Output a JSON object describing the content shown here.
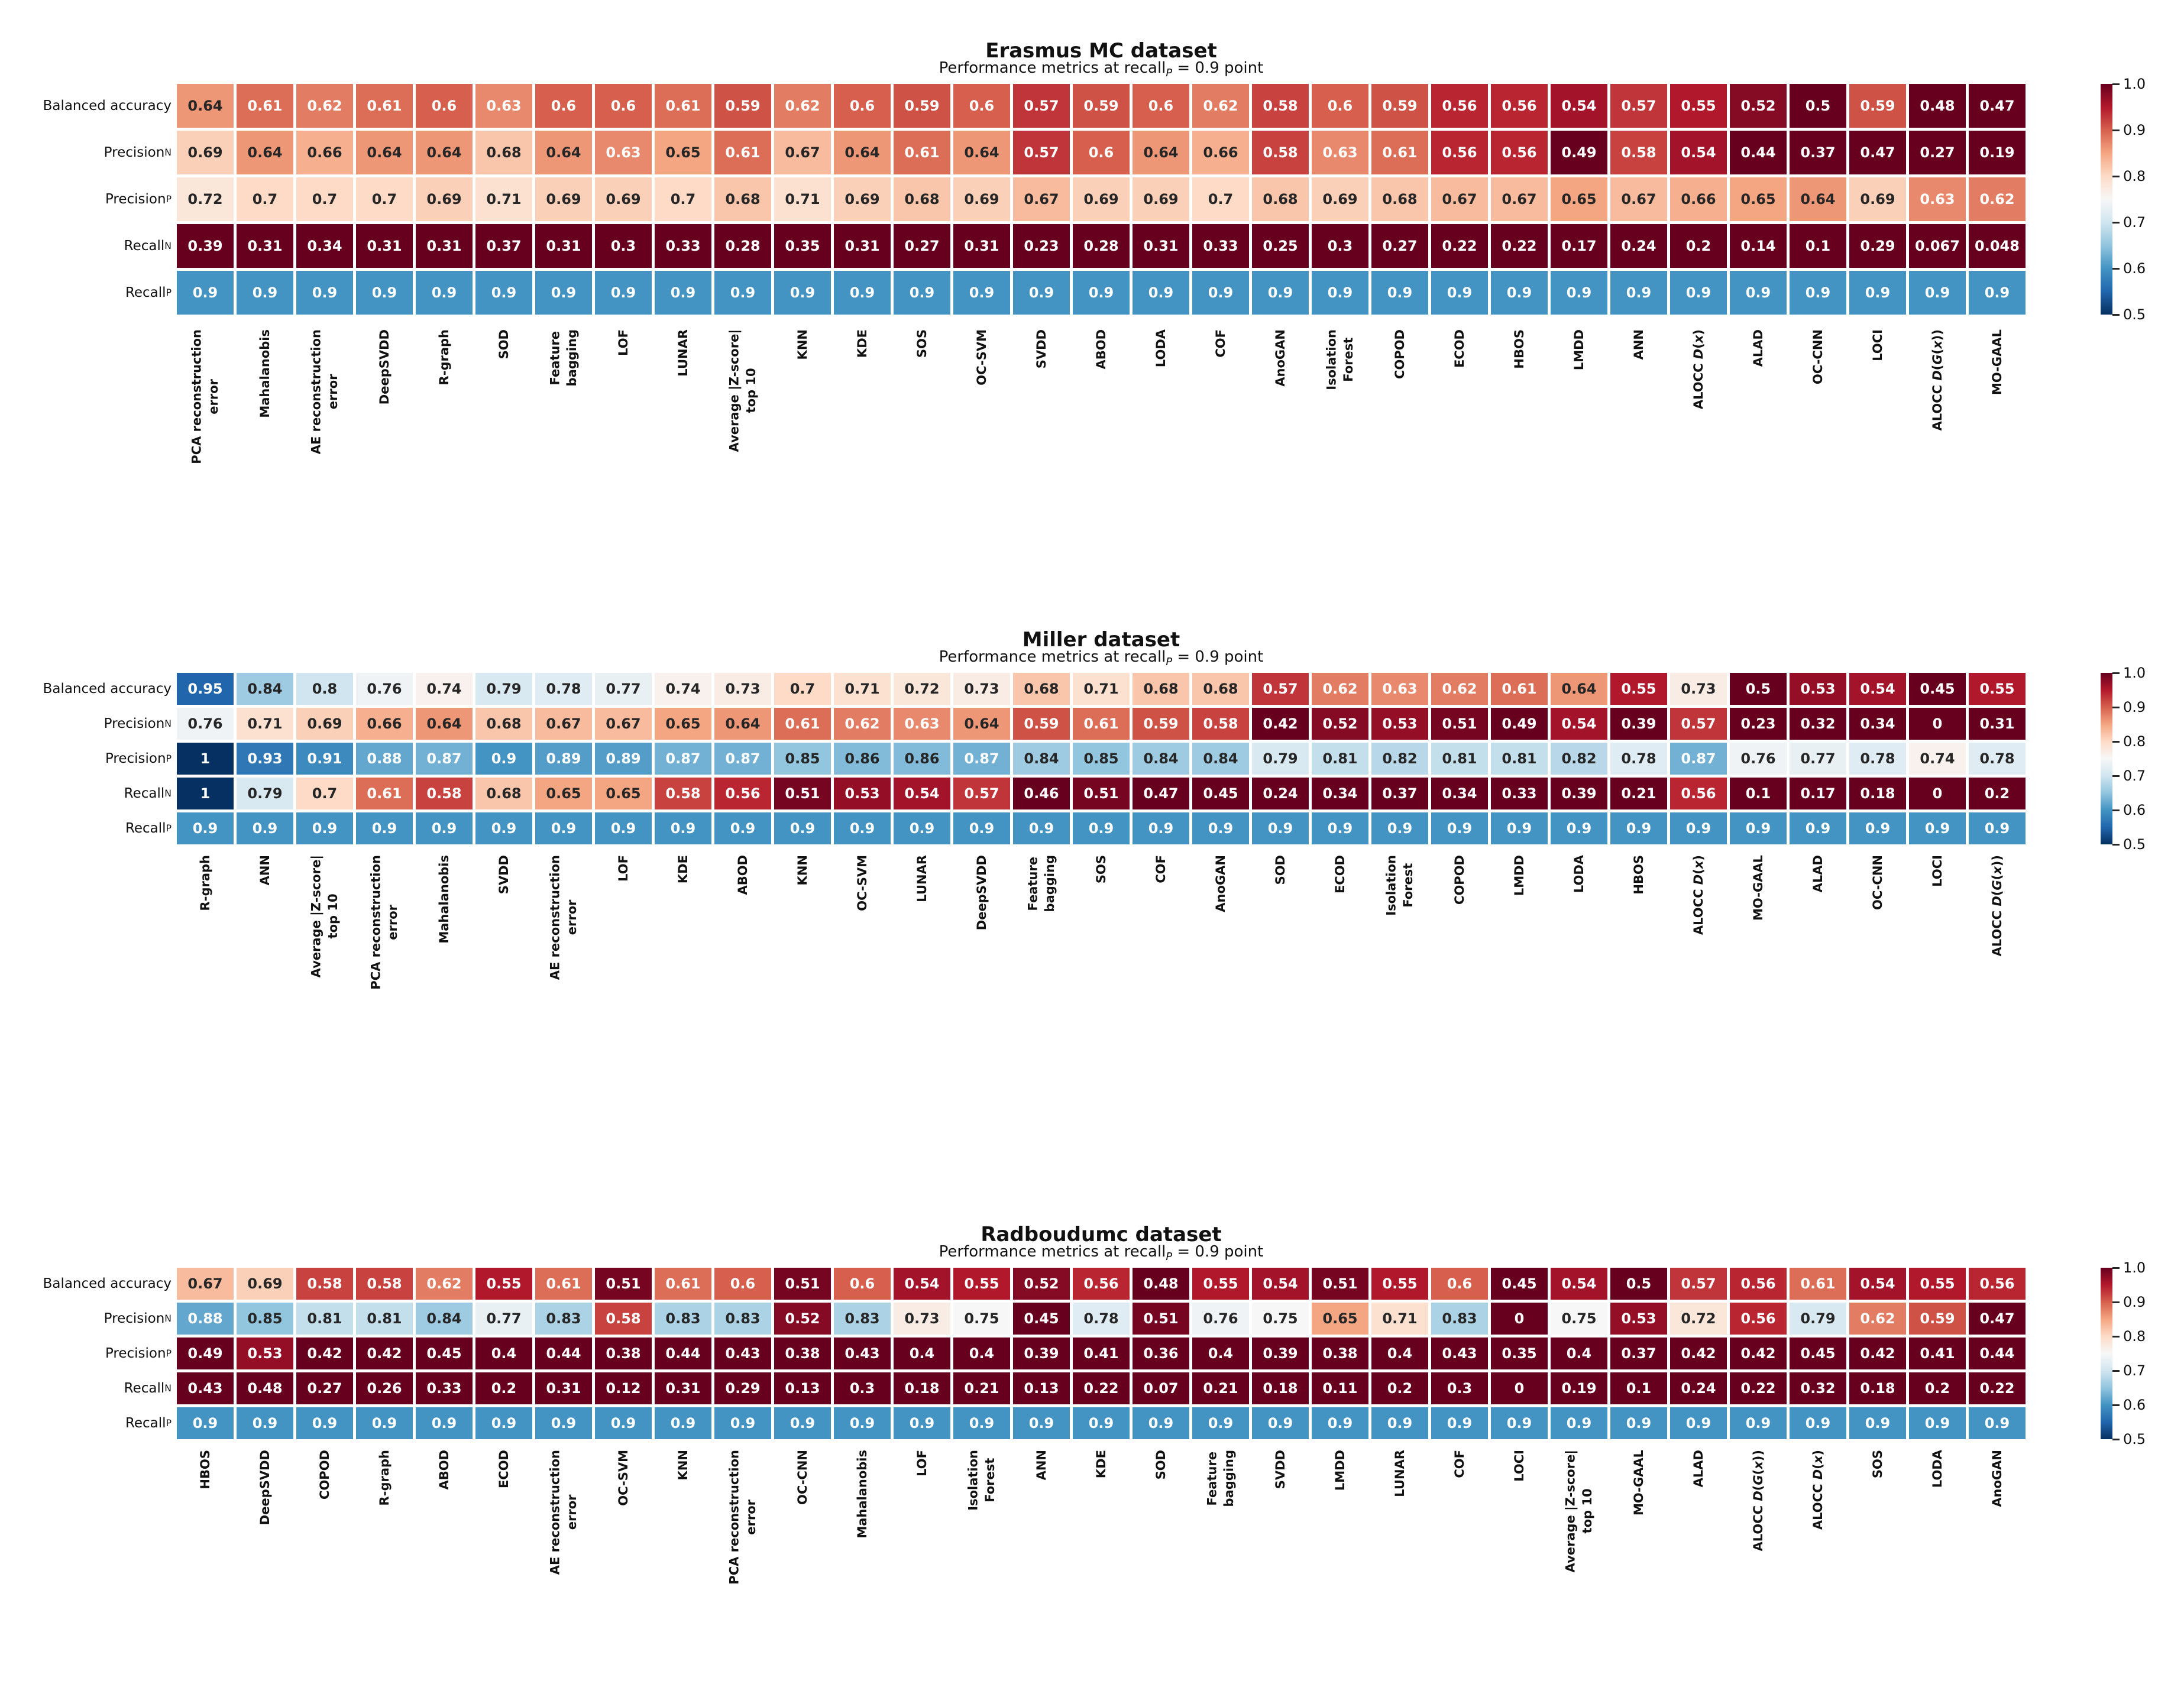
{
  "colorbar": {
    "ticks": [
      "1.0",
      "0.9",
      "0.8",
      "0.7",
      "0.6",
      "0.5"
    ],
    "colormap_stops": [
      "#67001f",
      "#b2182b",
      "#d6604d",
      "#f4a582",
      "#fddbc7",
      "#f7f7f7",
      "#d1e5f0",
      "#92c5de",
      "#4393c3",
      "#2166ac",
      "#053061"
    ]
  },
  "chart_data": [
    {
      "type": "heatmap",
      "title": "Erasmus MC dataset",
      "subtitle": "Performance metrics at recall*_{P}* = 0.9 point",
      "vmin": 0.5,
      "vmax": 1.0,
      "colormap": "RdBu_r",
      "legend_position": "right",
      "rows": [
        "Balanced accuracy",
        "Precision_{N}",
        "Precision_{P}",
        "Recall_{N}",
        "Recall_{P}"
      ],
      "columns": [
        "PCA reconstruction\nerror",
        "Mahalanobis",
        "AE reconstruction\nerror",
        "DeepSVDD",
        "R-graph",
        "SOD",
        "Feature\nbagging",
        "LOF",
        "LUNAR",
        "Average |Z-score|\ntop 10",
        "KNN",
        "KDE",
        "SOS",
        "OC-SVM",
        "SVDD",
        "ABOD",
        "LODA",
        "COF",
        "AnoGAN",
        "Isolation\nForest",
        "COPOD",
        "ECOD",
        "HBOS",
        "LMDD",
        "ANN",
        "ALOCC *D*(*x*)",
        "ALAD",
        "OC-CNN",
        "LOCI",
        "ALOCC *D*(*G*(*x*))",
        "MO-GAAL"
      ],
      "values": [
        [
          "0.64",
          "0.61",
          "0.62",
          "0.61",
          "0.6",
          "0.63",
          "0.6",
          "0.6",
          "0.61",
          "0.59",
          "0.62",
          "0.6",
          "0.59",
          "0.6",
          "0.57",
          "0.59",
          "0.6",
          "0.62",
          "0.58",
          "0.6",
          "0.59",
          "0.56",
          "0.56",
          "0.54",
          "0.57",
          "0.55",
          "0.52",
          "0.5",
          "0.59",
          "0.48",
          "0.47"
        ],
        [
          "0.69",
          "0.64",
          "0.66",
          "0.64",
          "0.64",
          "0.68",
          "0.64",
          "0.63",
          "0.65",
          "0.61",
          "0.67",
          "0.64",
          "0.61",
          "0.64",
          "0.57",
          "0.6",
          "0.64",
          "0.66",
          "0.58",
          "0.63",
          "0.61",
          "0.56",
          "0.56",
          "0.49",
          "0.58",
          "0.54",
          "0.44",
          "0.37",
          "0.47",
          "0.27",
          "0.19"
        ],
        [
          "0.72",
          "0.7",
          "0.7",
          "0.7",
          "0.69",
          "0.71",
          "0.69",
          "0.69",
          "0.7",
          "0.68",
          "0.71",
          "0.69",
          "0.68",
          "0.69",
          "0.67",
          "0.69",
          "0.69",
          "0.7",
          "0.68",
          "0.69",
          "0.68",
          "0.67",
          "0.67",
          "0.65",
          "0.67",
          "0.66",
          "0.65",
          "0.64",
          "0.69",
          "0.63",
          "0.62"
        ],
        [
          "0.39",
          "0.31",
          "0.34",
          "0.31",
          "0.31",
          "0.37",
          "0.31",
          "0.3",
          "0.33",
          "0.28",
          "0.35",
          "0.31",
          "0.27",
          "0.31",
          "0.23",
          "0.28",
          "0.31",
          "0.33",
          "0.25",
          "0.3",
          "0.27",
          "0.22",
          "0.22",
          "0.17",
          "0.24",
          "0.2",
          "0.14",
          "0.1",
          "0.29",
          "0.067",
          "0.048"
        ],
        [
          "0.9",
          "0.9",
          "0.9",
          "0.9",
          "0.9",
          "0.9",
          "0.9",
          "0.9",
          "0.9",
          "0.9",
          "0.9",
          "0.9",
          "0.9",
          "0.9",
          "0.9",
          "0.9",
          "0.9",
          "0.9",
          "0.9",
          "0.9",
          "0.9",
          "0.9",
          "0.9",
          "0.9",
          "0.9",
          "0.9",
          "0.9",
          "0.9",
          "0.9",
          "0.9",
          "0.9"
        ]
      ]
    },
    {
      "type": "heatmap",
      "title": "Miller dataset",
      "subtitle": "Performance metrics at recall*_{P}* = 0.9 point",
      "vmin": 0.5,
      "vmax": 1.0,
      "colormap": "RdBu_r",
      "legend_position": "right",
      "rows": [
        "Balanced accuracy",
        "Precision_{N}",
        "Precision_{P}",
        "Recall_{N}",
        "Recall_{P}"
      ],
      "columns": [
        "R-graph",
        "ANN",
        "Average |Z-score|\ntop 10",
        "PCA reconstruction\nerror",
        "Mahalanobis",
        "SVDD",
        "AE reconstruction\nerror",
        "LOF",
        "KDE",
        "ABOD",
        "KNN",
        "OC-SVM",
        "LUNAR",
        "DeepSVDD",
        "Feature\nbagging",
        "SOS",
        "COF",
        "AnoGAN",
        "SOD",
        "ECOD",
        "Isolation\nForest",
        "COPOD",
        "LMDD",
        "LODA",
        "HBOS",
        "ALOCC *D*(*x*)",
        "MO-GAAL",
        "ALAD",
        "OC-CNN",
        "LOCI",
        "ALOCC *D*(*G*(*x*))"
      ],
      "values": [
        [
          "0.95",
          "0.84",
          "0.8",
          "0.76",
          "0.74",
          "0.79",
          "0.78",
          "0.77",
          "0.74",
          "0.73",
          "0.7",
          "0.71",
          "0.72",
          "0.73",
          "0.68",
          "0.71",
          "0.68",
          "0.68",
          "0.57",
          "0.62",
          "0.63",
          "0.62",
          "0.61",
          "0.64",
          "0.55",
          "0.73",
          "0.5",
          "0.53",
          "0.54",
          "0.45",
          "0.55"
        ],
        [
          "0.76",
          "0.71",
          "0.69",
          "0.66",
          "0.64",
          "0.68",
          "0.67",
          "0.67",
          "0.65",
          "0.64",
          "0.61",
          "0.62",
          "0.63",
          "0.64",
          "0.59",
          "0.61",
          "0.59",
          "0.58",
          "0.42",
          "0.52",
          "0.53",
          "0.51",
          "0.49",
          "0.54",
          "0.39",
          "0.57",
          "0.23",
          "0.32",
          "0.34",
          "0",
          "0.31"
        ],
        [
          "1",
          "0.93",
          "0.91",
          "0.88",
          "0.87",
          "0.9",
          "0.89",
          "0.89",
          "0.87",
          "0.87",
          "0.85",
          "0.86",
          "0.86",
          "0.87",
          "0.84",
          "0.85",
          "0.84",
          "0.84",
          "0.79",
          "0.81",
          "0.82",
          "0.81",
          "0.81",
          "0.82",
          "0.78",
          "0.87",
          "0.76",
          "0.77",
          "0.78",
          "0.74",
          "0.78"
        ],
        [
          "1",
          "0.79",
          "0.7",
          "0.61",
          "0.58",
          "0.68",
          "0.65",
          "0.65",
          "0.58",
          "0.56",
          "0.51",
          "0.53",
          "0.54",
          "0.57",
          "0.46",
          "0.51",
          "0.47",
          "0.45",
          "0.24",
          "0.34",
          "0.37",
          "0.34",
          "0.33",
          "0.39",
          "0.21",
          "0.56",
          "0.1",
          "0.17",
          "0.18",
          "0",
          "0.2"
        ],
        [
          "0.9",
          "0.9",
          "0.9",
          "0.9",
          "0.9",
          "0.9",
          "0.9",
          "0.9",
          "0.9",
          "0.9",
          "0.9",
          "0.9",
          "0.9",
          "0.9",
          "0.9",
          "0.9",
          "0.9",
          "0.9",
          "0.9",
          "0.9",
          "0.9",
          "0.9",
          "0.9",
          "0.9",
          "0.9",
          "0.9",
          "0.9",
          "0.9",
          "0.9",
          "0.9",
          "0.9"
        ]
      ]
    },
    {
      "type": "heatmap",
      "title": "Radboudumc dataset",
      "subtitle": "Performance metrics at recall*_{P}* = 0.9 point",
      "vmin": 0.5,
      "vmax": 1.0,
      "colormap": "RdBu_r",
      "legend_position": "right",
      "rows": [
        "Balanced accuracy",
        "Precision_{N}",
        "Precision_{P}",
        "Recall_{N}",
        "Recall_{P}"
      ],
      "columns": [
        "HBOS",
        "DeepSVDD",
        "COPOD",
        "R-graph",
        "ABOD",
        "ECOD",
        "AE reconstruction\nerror",
        "OC-SVM",
        "KNN",
        "PCA reconstruction\nerror",
        "OC-CNN",
        "Mahalanobis",
        "LOF",
        "Isolation\nForest",
        "ANN",
        "KDE",
        "SOD",
        "Feature\nbagging",
        "SVDD",
        "LMDD",
        "LUNAR",
        "COF",
        "LOCI",
        "Average |Z-score|\ntop 10",
        "MO-GAAL",
        "ALAD",
        "ALOCC *D*(*G*(*x*))",
        "ALOCC *D*(*x*)",
        "SOS",
        "LODA",
        "AnoGAN"
      ],
      "values": [
        [
          "0.67",
          "0.69",
          "0.58",
          "0.58",
          "0.62",
          "0.55",
          "0.61",
          "0.51",
          "0.61",
          "0.6",
          "0.51",
          "0.6",
          "0.54",
          "0.55",
          "0.52",
          "0.56",
          "0.48",
          "0.55",
          "0.54",
          "0.51",
          "0.55",
          "0.6",
          "0.45",
          "0.54",
          "0.5",
          "0.57",
          "0.56",
          "0.61",
          "0.54",
          "0.55",
          "0.56"
        ],
        [
          "0.88",
          "0.85",
          "0.81",
          "0.81",
          "0.84",
          "0.77",
          "0.83",
          "0.58",
          "0.83",
          "0.83",
          "0.52",
          "0.83",
          "0.73",
          "0.75",
          "0.45",
          "0.78",
          "0.51",
          "0.76",
          "0.75",
          "0.65",
          "0.71",
          "0.83",
          "0",
          "0.75",
          "0.53",
          "0.72",
          "0.56",
          "0.79",
          "0.62",
          "0.59",
          "0.47"
        ],
        [
          "0.49",
          "0.53",
          "0.42",
          "0.42",
          "0.45",
          "0.4",
          "0.44",
          "0.38",
          "0.44",
          "0.43",
          "0.38",
          "0.43",
          "0.4",
          "0.4",
          "0.39",
          "0.41",
          "0.36",
          "0.4",
          "0.39",
          "0.38",
          "0.4",
          "0.43",
          "0.35",
          "0.4",
          "0.37",
          "0.42",
          "0.42",
          "0.45",
          "0.42",
          "0.41",
          "0.44"
        ],
        [
          "0.43",
          "0.48",
          "0.27",
          "0.26",
          "0.33",
          "0.2",
          "0.31",
          "0.12",
          "0.31",
          "0.29",
          "0.13",
          "0.3",
          "0.18",
          "0.21",
          "0.13",
          "0.22",
          "0.07",
          "0.21",
          "0.18",
          "0.11",
          "0.2",
          "0.3",
          "0",
          "0.19",
          "0.1",
          "0.24",
          "0.22",
          "0.32",
          "0.18",
          "0.2",
          "0.22"
        ],
        [
          "0.9",
          "0.9",
          "0.9",
          "0.9",
          "0.9",
          "0.9",
          "0.9",
          "0.9",
          "0.9",
          "0.9",
          "0.9",
          "0.9",
          "0.9",
          "0.9",
          "0.9",
          "0.9",
          "0.9",
          "0.9",
          "0.9",
          "0.9",
          "0.9",
          "0.9",
          "0.9",
          "0.9",
          "0.9",
          "0.9",
          "0.9",
          "0.9",
          "0.9",
          "0.9",
          "0.9"
        ]
      ]
    }
  ]
}
